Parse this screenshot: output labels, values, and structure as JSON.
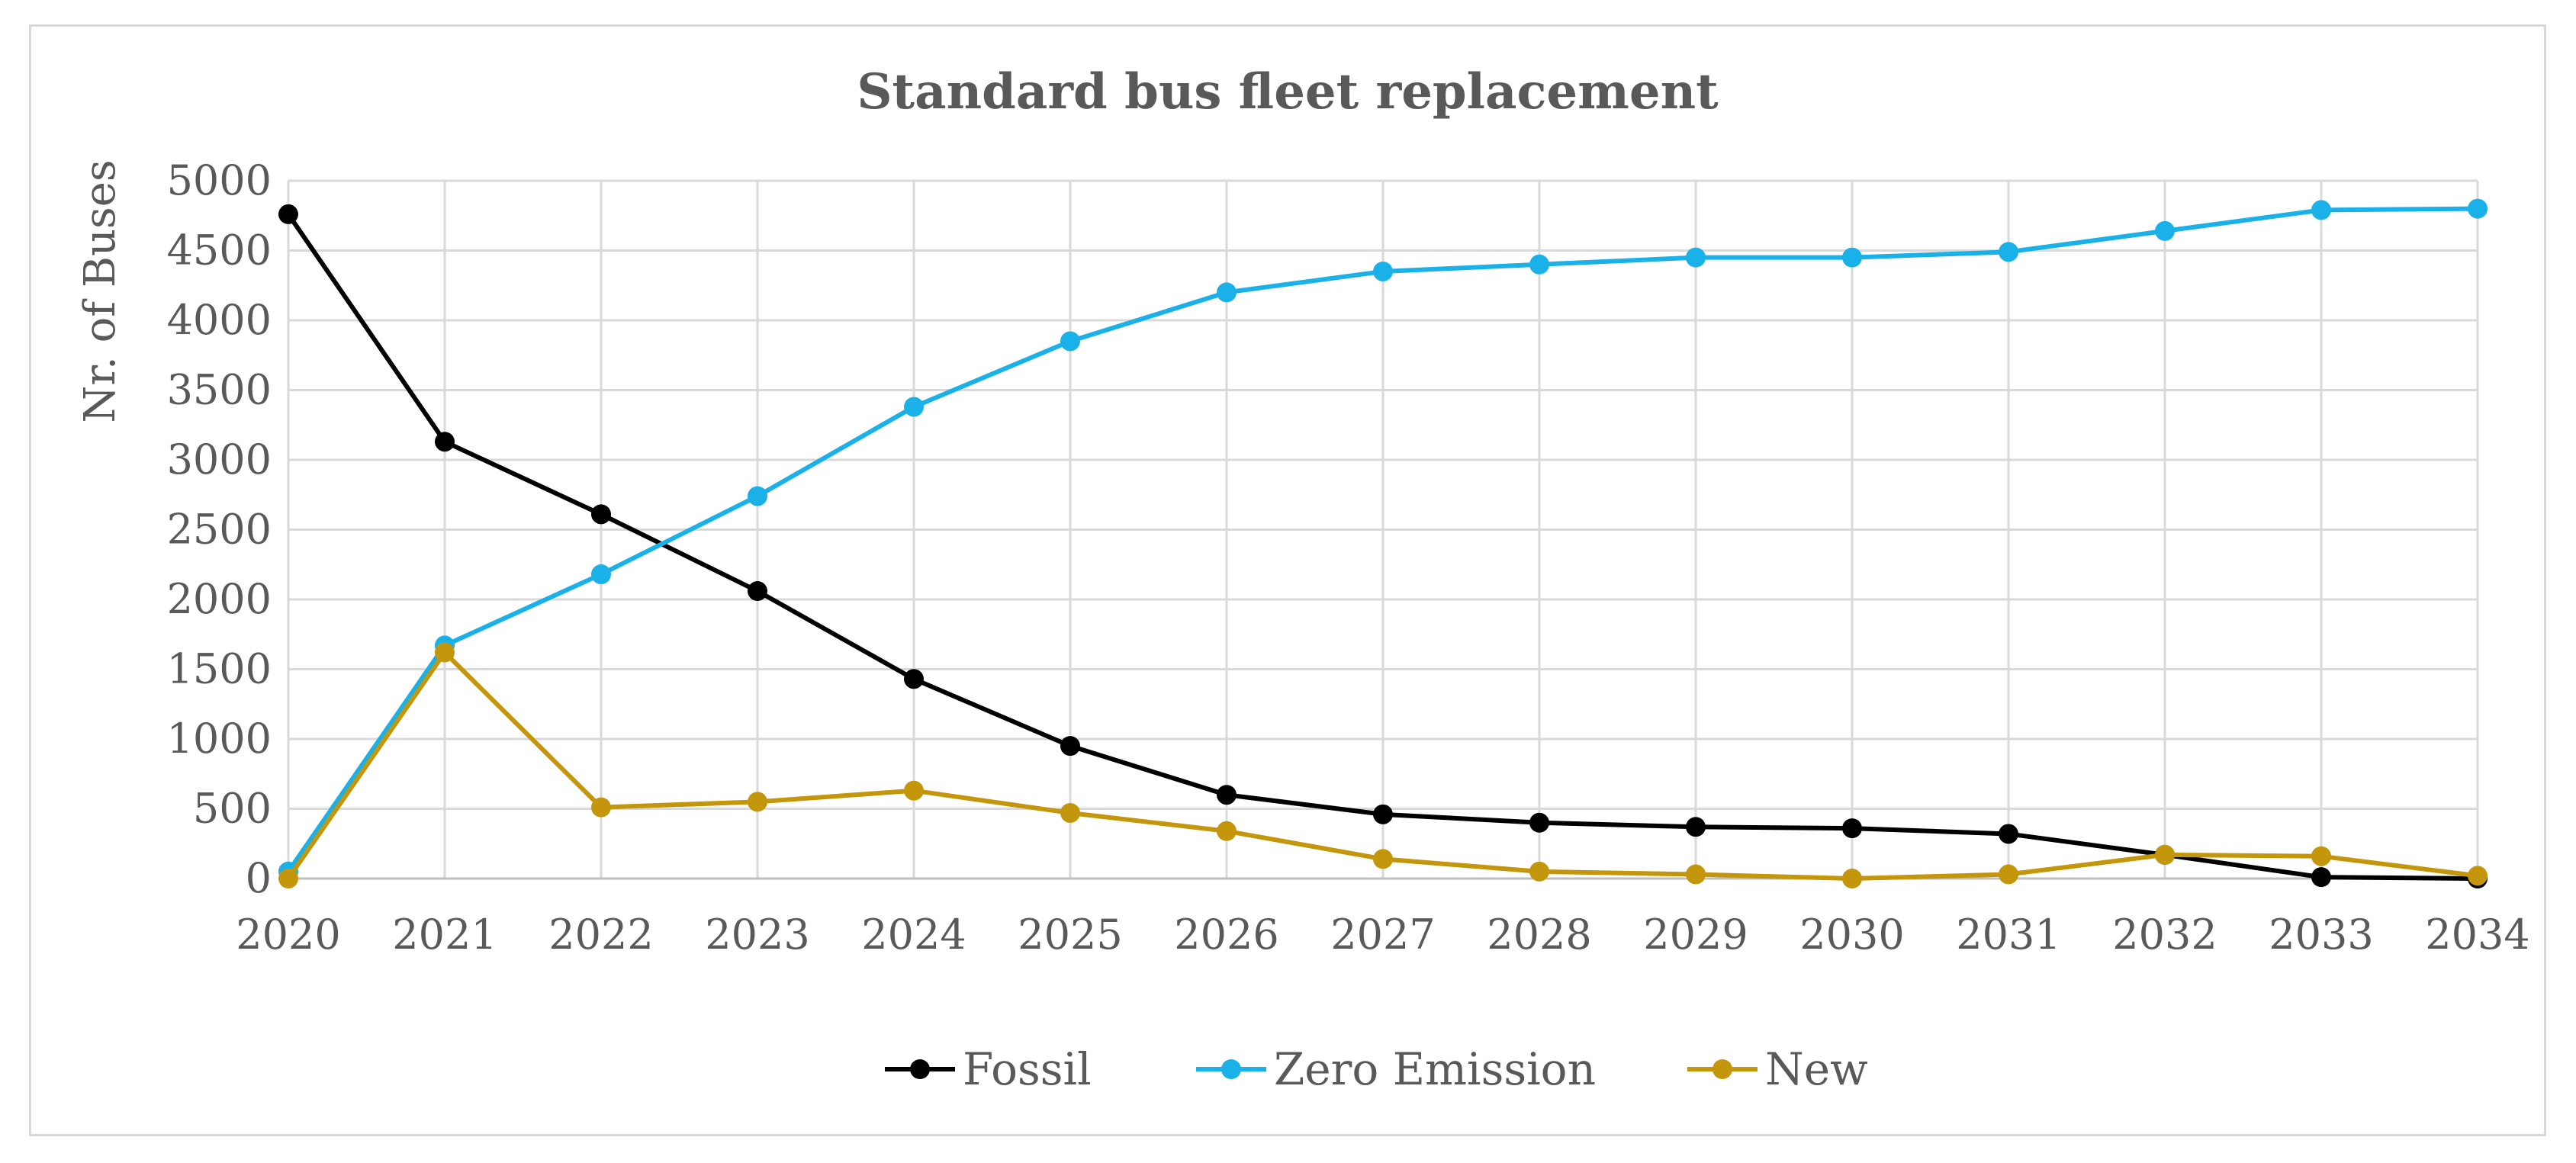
{
  "chart_data": {
    "type": "line",
    "title": "Standard bus fleet replacement",
    "xlabel": "",
    "ylabel": "Nr. of Buses",
    "categories": [
      "2020",
      "2021",
      "2022",
      "2023",
      "2024",
      "2025",
      "2026",
      "2027",
      "2028",
      "2029",
      "2030",
      "2031",
      "2032",
      "2033",
      "2034"
    ],
    "y_ticks": [
      "0",
      "500",
      "1000",
      "1500",
      "2000",
      "2500",
      "3000",
      "3500",
      "4000",
      "4500",
      "5000"
    ],
    "ylim": [
      0,
      5000
    ],
    "grid": true,
    "legend_position": "bottom",
    "series": [
      {
        "name": "Fossil",
        "color": "#000000",
        "values": [
          4760,
          3130,
          2610,
          2060,
          1430,
          950,
          600,
          460,
          400,
          370,
          360,
          320,
          170,
          10,
          0
        ]
      },
      {
        "name": "Zero Emission",
        "color": "#1ab0e8",
        "values": [
          50,
          1670,
          2180,
          2740,
          3380,
          3850,
          4200,
          4350,
          4400,
          4450,
          4450,
          4490,
          4640,
          4790,
          4800
        ]
      },
      {
        "name": "New",
        "color": "#c4960c",
        "values": [
          0,
          1620,
          510,
          550,
          630,
          470,
          340,
          140,
          50,
          30,
          0,
          30,
          170,
          160,
          20
        ]
      }
    ]
  }
}
